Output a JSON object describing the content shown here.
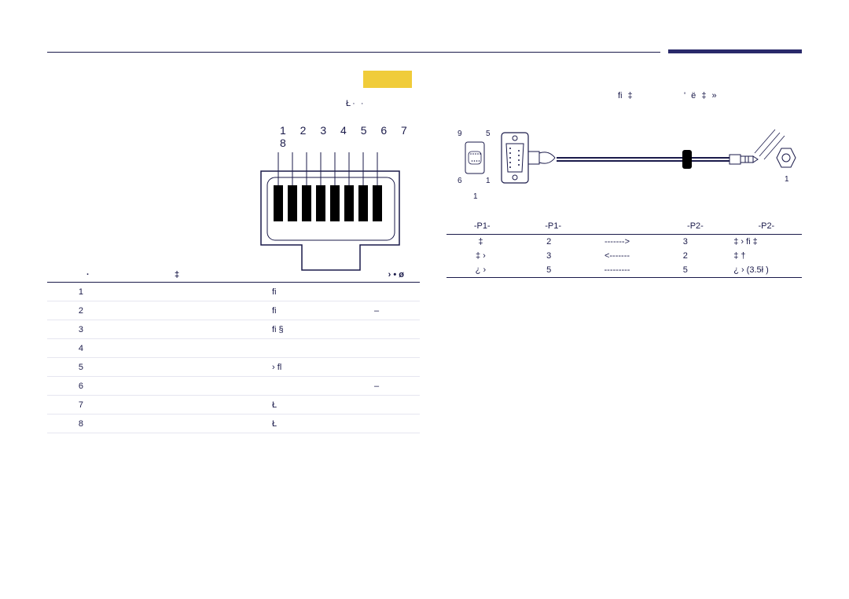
{
  "header": {
    "accent_color": "#2a2a6a"
  },
  "callout": {
    "color": "#f0cc3a"
  },
  "left": {
    "caption": "Ł·   · ",
    "pin_numbers": "1 2 3 4 5 6 7 8",
    "table": {
      "headers": {
        "c1": "·",
        "c2": "‡",
        "c3": "› • ø"
      },
      "rows": [
        {
          "n": "1",
          "sig": "ﬁ",
          "ex": ""
        },
        {
          "n": "2",
          "sig": "ﬁ",
          "ex": "–"
        },
        {
          "n": "3",
          "sig": "ﬁ §",
          "ex": ""
        },
        {
          "n": "4",
          "sig": "",
          "ex": ""
        },
        {
          "n": "5",
          "sig": "› ﬂ",
          "ex": ""
        },
        {
          "n": "6",
          "sig": "",
          "ex": "–"
        },
        {
          "n": "7",
          "sig": "Ł",
          "ex": ""
        },
        {
          "n": "8",
          "sig": "Ł",
          "ex": ""
        }
      ]
    }
  },
  "right": {
    "label1": "ﬁ  ‡",
    "label2": "' ё ‡      »",
    "bracket": "",
    "conn_labels": {
      "tl": "9",
      "tr": "5",
      "bl": "6",
      "br": "1"
    },
    "sub1": "1",
    "sub2": "1",
    "table": {
      "headers": [
        "-P1-",
        "-P1-",
        "",
        "-P2-",
        "-P2-"
      ],
      "rows": [
        {
          "c1": "‡",
          "c2": "2",
          "c3": "------->",
          "c4": "3",
          "c5": "‡ ›      ﬁ ‡"
        },
        {
          "c1": "‡ ›",
          "c2": "3",
          "c3": "<-------",
          "c4": "2",
          "c5": "‡       †"
        },
        {
          "c1": "¿ ›",
          "c2": "5",
          "c3": "---------",
          "c4": "5",
          "c5": "¿ ›    (3.5ł )"
        }
      ]
    }
  }
}
